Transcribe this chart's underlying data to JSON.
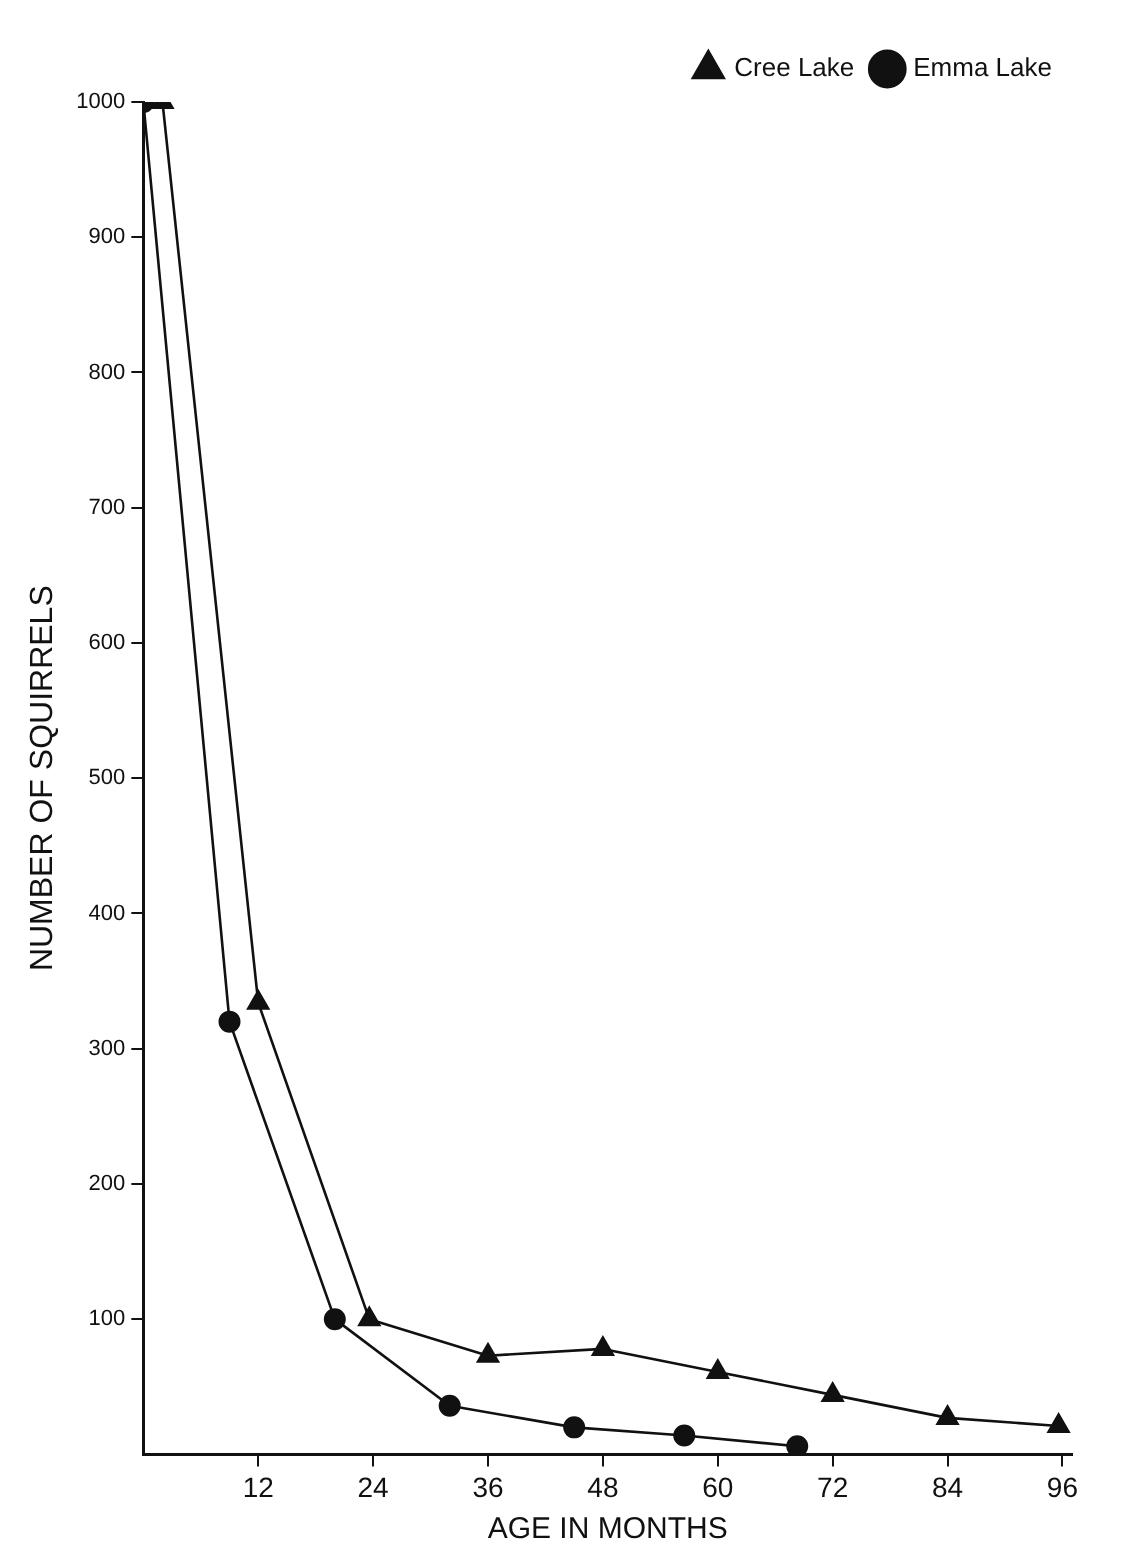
{
  "chart_data": {
    "type": "line",
    "xlabel": "AGE IN MONTHS",
    "ylabel": "NUMBER OF SQUIRRELS",
    "xlim": [
      0,
      97
    ],
    "xticks": [
      12,
      24,
      36,
      48,
      60,
      72,
      84,
      96
    ],
    "ylim": [
      0,
      1000
    ],
    "yticks": [
      100,
      200,
      300,
      400,
      500,
      600,
      700,
      800,
      900,
      1000
    ],
    "grid": false,
    "legend": "top right",
    "series": [
      {
        "name": "Cree Lake",
        "color": "#111111",
        "marker": "triangle",
        "x": [
          2,
          12,
          23.6,
          36,
          48,
          60,
          72,
          84,
          95.6
        ],
        "values": [
          1000,
          334,
          100,
          73,
          78,
          61,
          44,
          27,
          21
        ]
      },
      {
        "name": "Emma Lake",
        "color": "#111111",
        "marker": "circle",
        "x": [
          0,
          9,
          20,
          32,
          45,
          56.5,
          68.3
        ],
        "values": [
          1000,
          320,
          100,
          36,
          20,
          14,
          6
        ]
      }
    ]
  }
}
